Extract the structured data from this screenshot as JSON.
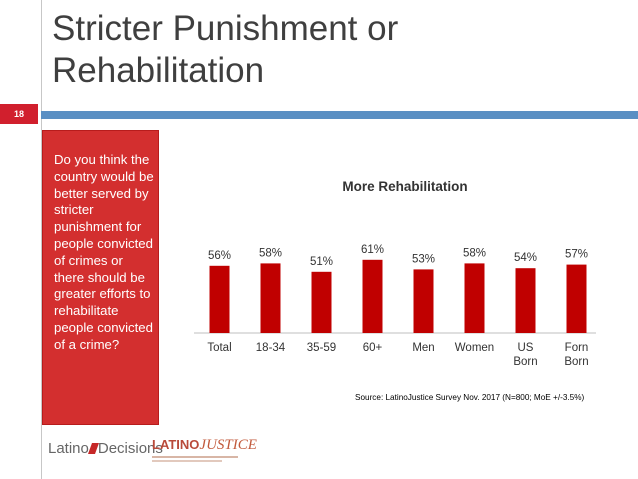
{
  "slide": {
    "title": "Stricter Punishment or Rehabilitation",
    "number": "18"
  },
  "question": {
    "text": "Do you think the country would be better served by stricter punishment for people convicted of crimes or there should be greater efforts to rehabilitate people convicted of a crime?"
  },
  "source": "Source: LatinoJustice Survey Nov. 2017 (N=800; MoE +/-3.5%)",
  "logos": {
    "latino_decisions": {
      "part1": "Latino",
      "part2": "Decisions"
    },
    "latino_justice": {
      "part1": "LATINO",
      "part2": "JUSTICE"
    }
  },
  "chart_data": {
    "type": "bar",
    "title": "More Rehabilitation",
    "categories": [
      "Total",
      "18-34",
      "35-59",
      "60+",
      "Men",
      "Women",
      "US Born",
      "Forn Born"
    ],
    "values": [
      56,
      58,
      51,
      61,
      53,
      58,
      54,
      57
    ],
    "value_labels": [
      "56%",
      "58%",
      "51%",
      "61%",
      "53%",
      "58%",
      "54%",
      "57%"
    ],
    "ylim": [
      0,
      70
    ],
    "grid": false,
    "color": "#c00000"
  }
}
